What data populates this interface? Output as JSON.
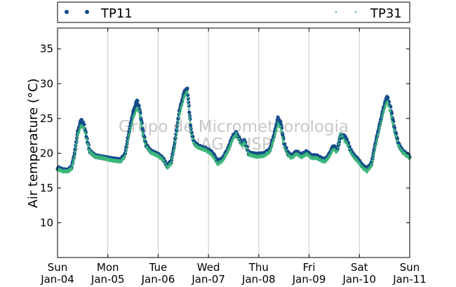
{
  "chart_data": {
    "type": "scatter",
    "ylabel": "Air temperature (°C)",
    "ylim": [
      5,
      38
    ],
    "yticks": [
      10,
      15,
      20,
      25,
      30,
      35
    ],
    "xlim": [
      0,
      7
    ],
    "xticks": [
      {
        "x": 0,
        "top": "Sun",
        "bottom": "Jan-04"
      },
      {
        "x": 1,
        "top": "Mon",
        "bottom": "Jan-05"
      },
      {
        "x": 2,
        "top": "Tue",
        "bottom": "Jan-06"
      },
      {
        "x": 3,
        "top": "Wed",
        "bottom": "Jan-07"
      },
      {
        "x": 4,
        "top": "Thu",
        "bottom": "Jan-08"
      },
      {
        "x": 5,
        "top": "Fri",
        "bottom": "Jan-09"
      },
      {
        "x": 6,
        "top": "Sat",
        "bottom": "Jan-10"
      },
      {
        "x": 7,
        "top": "Sun",
        "bottom": "Jan-11"
      }
    ],
    "grid": "vertical",
    "legend_position": "top",
    "watermark": [
      "Grupo de Micrometeorologia",
      "IAG / USP"
    ],
    "series": [
      {
        "name": "TP11",
        "color": "#154c8a",
        "marker": "circle",
        "values": [
          [
            0.0,
            17.9
          ],
          [
            0.1,
            17.6
          ],
          [
            0.2,
            17.5
          ],
          [
            0.28,
            18.0
          ],
          [
            0.34,
            20.0
          ],
          [
            0.4,
            23.0
          ],
          [
            0.47,
            24.8
          ],
          [
            0.53,
            24.0
          ],
          [
            0.58,
            22.2
          ],
          [
            0.64,
            20.3
          ],
          [
            0.75,
            19.6
          ],
          [
            0.9,
            19.4
          ],
          [
            1.05,
            19.2
          ],
          [
            1.25,
            19.0
          ],
          [
            1.34,
            19.8
          ],
          [
            1.42,
            23.0
          ],
          [
            1.5,
            25.8
          ],
          [
            1.58,
            27.6
          ],
          [
            1.63,
            26.4
          ],
          [
            1.7,
            23.0
          ],
          [
            1.76,
            21.2
          ],
          [
            1.85,
            20.3
          ],
          [
            2.0,
            19.8
          ],
          [
            2.1,
            19.2
          ],
          [
            2.18,
            18.2
          ],
          [
            2.26,
            18.8
          ],
          [
            2.33,
            21.5
          ],
          [
            2.42,
            26.0
          ],
          [
            2.52,
            28.8
          ],
          [
            2.58,
            29.2
          ],
          [
            2.62,
            26.0
          ],
          [
            2.66,
            23.0
          ],
          [
            2.72,
            21.5
          ],
          [
            2.8,
            21.0
          ],
          [
            2.95,
            20.6
          ],
          [
            3.05,
            20.2
          ],
          [
            3.12,
            19.6
          ],
          [
            3.18,
            18.8
          ],
          [
            3.28,
            19.2
          ],
          [
            3.38,
            20.5
          ],
          [
            3.48,
            22.4
          ],
          [
            3.55,
            22.9
          ],
          [
            3.6,
            22.3
          ],
          [
            3.66,
            21.4
          ],
          [
            3.72,
            21.8
          ],
          [
            3.8,
            20.0
          ],
          [
            3.95,
            19.8
          ],
          [
            4.1,
            19.9
          ],
          [
            4.22,
            20.5
          ],
          [
            4.3,
            22.5
          ],
          [
            4.38,
            25.0
          ],
          [
            4.44,
            24.3
          ],
          [
            4.5,
            21.5
          ],
          [
            4.58,
            20.0
          ],
          [
            4.65,
            19.6
          ],
          [
            4.75,
            20.2
          ],
          [
            4.85,
            19.7
          ],
          [
            4.95,
            20.2
          ],
          [
            5.05,
            19.6
          ],
          [
            5.15,
            19.6
          ],
          [
            5.25,
            19.2
          ],
          [
            5.32,
            19.0
          ],
          [
            5.4,
            19.8
          ],
          [
            5.48,
            21.0
          ],
          [
            5.56,
            20.5
          ],
          [
            5.62,
            22.4
          ],
          [
            5.7,
            22.5
          ],
          [
            5.76,
            21.8
          ],
          [
            5.82,
            20.5
          ],
          [
            5.9,
            19.6
          ],
          [
            5.98,
            19.0
          ],
          [
            6.06,
            18.2
          ],
          [
            6.15,
            17.7
          ],
          [
            6.24,
            18.5
          ],
          [
            6.32,
            21.5
          ],
          [
            6.4,
            24.0
          ],
          [
            6.48,
            26.5
          ],
          [
            6.55,
            28.2
          ],
          [
            6.62,
            26.5
          ],
          [
            6.7,
            23.5
          ],
          [
            6.78,
            21.3
          ],
          [
            6.86,
            20.3
          ],
          [
            6.95,
            19.8
          ],
          [
            7.0,
            19.5
          ]
        ]
      },
      {
        "name": "TP31",
        "color": "#3cb77a",
        "marker": "point",
        "values": [
          [
            0.0,
            17.7
          ],
          [
            0.1,
            17.4
          ],
          [
            0.2,
            17.4
          ],
          [
            0.28,
            17.8
          ],
          [
            0.34,
            19.6
          ],
          [
            0.4,
            22.5
          ],
          [
            0.47,
            24.0
          ],
          [
            0.53,
            23.5
          ],
          [
            0.58,
            22.0
          ],
          [
            0.64,
            20.2
          ],
          [
            0.75,
            19.5
          ],
          [
            0.9,
            19.3
          ],
          [
            1.05,
            19.0
          ],
          [
            1.25,
            18.8
          ],
          [
            1.34,
            19.5
          ],
          [
            1.42,
            22.5
          ],
          [
            1.5,
            25.0
          ],
          [
            1.58,
            26.5
          ],
          [
            1.63,
            25.8
          ],
          [
            1.7,
            22.5
          ],
          [
            1.76,
            21.0
          ],
          [
            1.85,
            20.1
          ],
          [
            2.0,
            19.6
          ],
          [
            2.1,
            19.0
          ],
          [
            2.18,
            17.9
          ],
          [
            2.26,
            18.5
          ],
          [
            2.33,
            21.0
          ],
          [
            2.42,
            25.5
          ],
          [
            2.52,
            28.2
          ],
          [
            2.58,
            28.8
          ],
          [
            2.62,
            25.5
          ],
          [
            2.66,
            22.6
          ],
          [
            2.72,
            21.2
          ],
          [
            2.8,
            20.8
          ],
          [
            2.95,
            20.4
          ],
          [
            3.05,
            19.9
          ],
          [
            3.12,
            19.2
          ],
          [
            3.18,
            18.4
          ],
          [
            3.28,
            18.9
          ],
          [
            3.38,
            20.2
          ],
          [
            3.48,
            22.0
          ],
          [
            3.55,
            22.7
          ],
          [
            3.6,
            22.0
          ],
          [
            3.66,
            21.1
          ],
          [
            3.72,
            21.5
          ],
          [
            3.8,
            19.8
          ],
          [
            3.95,
            19.5
          ],
          [
            4.1,
            19.6
          ],
          [
            4.22,
            20.2
          ],
          [
            4.3,
            22.0
          ],
          [
            4.38,
            24.2
          ],
          [
            4.44,
            23.6
          ],
          [
            4.5,
            21.0
          ],
          [
            4.58,
            19.7
          ],
          [
            4.65,
            19.3
          ],
          [
            4.75,
            19.9
          ],
          [
            4.85,
            19.4
          ],
          [
            4.95,
            19.9
          ],
          [
            5.05,
            19.3
          ],
          [
            5.15,
            19.3
          ],
          [
            5.25,
            18.9
          ],
          [
            5.32,
            18.8
          ],
          [
            5.4,
            19.5
          ],
          [
            5.48,
            20.6
          ],
          [
            5.56,
            20.1
          ],
          [
            5.62,
            23.0
          ],
          [
            5.7,
            21.8
          ],
          [
            5.76,
            21.3
          ],
          [
            5.82,
            20.2
          ],
          [
            5.9,
            19.3
          ],
          [
            5.98,
            18.7
          ],
          [
            6.06,
            17.9
          ],
          [
            6.15,
            17.4
          ],
          [
            6.24,
            18.2
          ],
          [
            6.32,
            21.0
          ],
          [
            6.4,
            23.5
          ],
          [
            6.48,
            26.0
          ],
          [
            6.55,
            27.5
          ],
          [
            6.62,
            25.8
          ],
          [
            6.7,
            23.0
          ],
          [
            6.78,
            21.0
          ],
          [
            6.86,
            20.1
          ],
          [
            6.95,
            19.6
          ],
          [
            7.0,
            19.3
          ]
        ]
      }
    ]
  }
}
